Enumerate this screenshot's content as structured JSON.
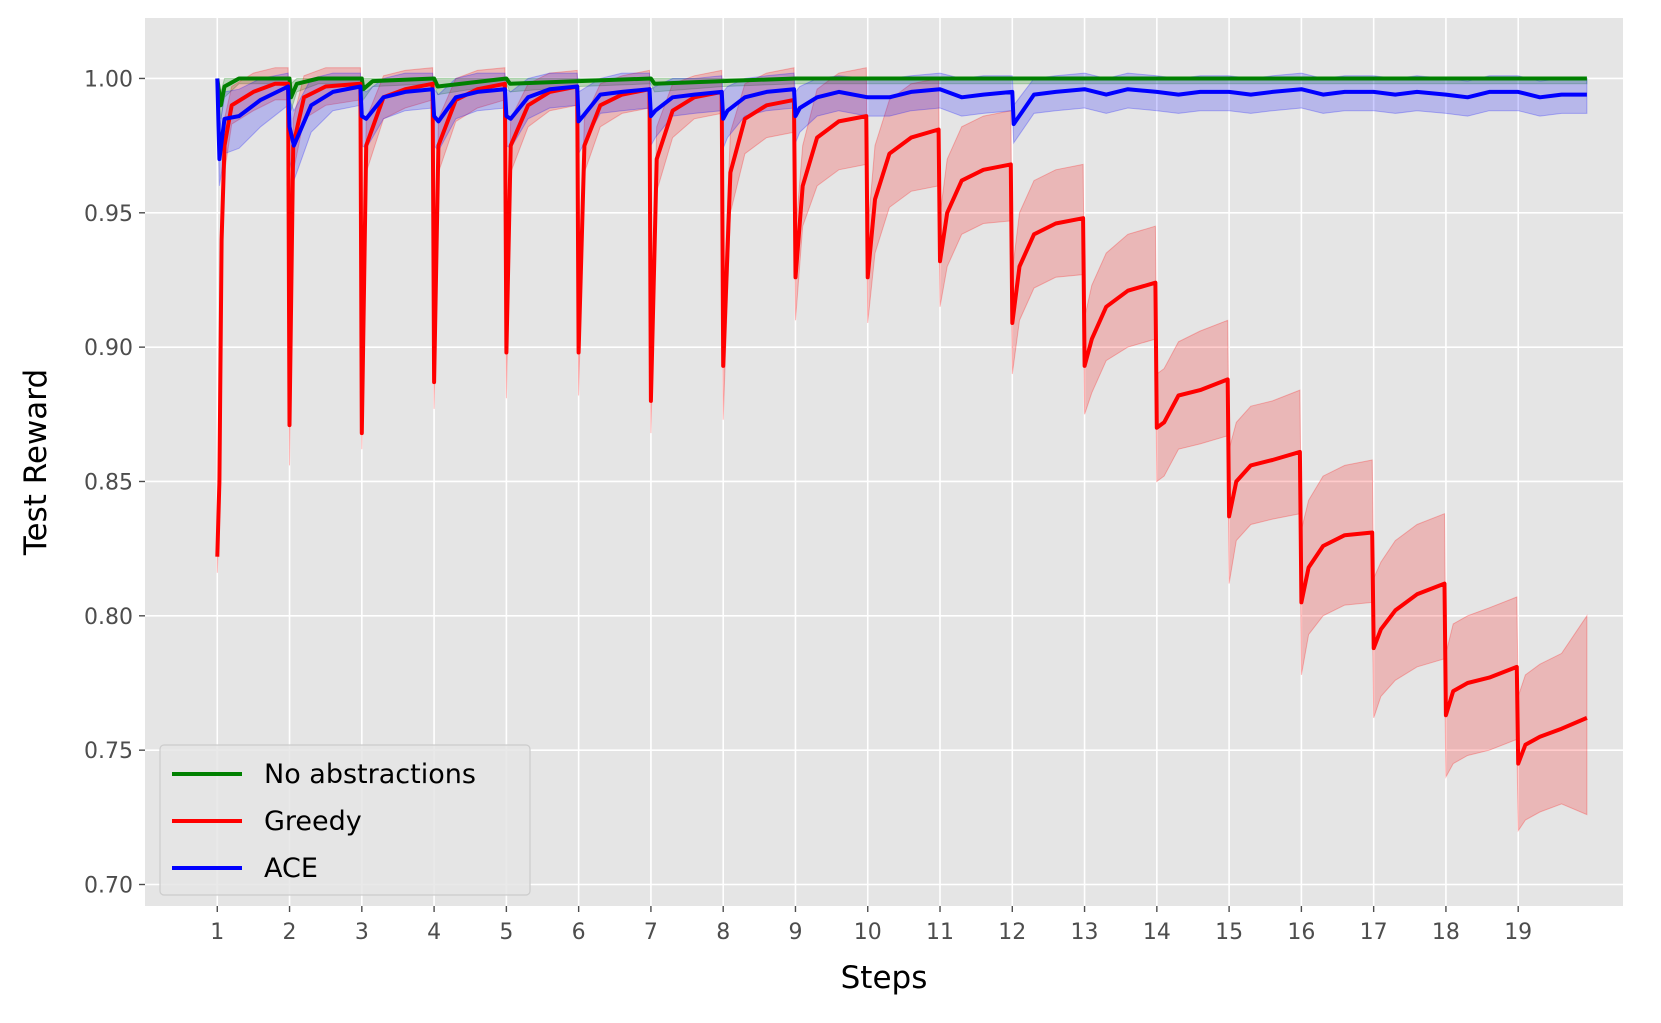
{
  "chart_data": {
    "type": "line",
    "xlabel": "Steps",
    "ylabel": "Test Reward",
    "xlim": [
      0.0,
      20.45
    ],
    "ylim": [
      0.692,
      1.0225
    ],
    "xticks": [
      1,
      2,
      3,
      4,
      5,
      6,
      7,
      8,
      9,
      10,
      11,
      12,
      13,
      14,
      15,
      16,
      17,
      18,
      19
    ],
    "yticks": [
      0.7,
      0.75,
      0.8,
      0.85,
      0.9,
      0.95,
      1.0
    ],
    "ytick_labels": [
      "0.70",
      "0.75",
      "0.80",
      "0.85",
      "0.90",
      "0.95",
      "1.00"
    ],
    "grid": true,
    "legend_position": "lower-left",
    "series": [
      {
        "name": "No abstractions",
        "color": "#008000",
        "x": [
          1,
          1.05,
          1.1,
          1.3,
          2,
          2.02,
          2.1,
          2.4,
          3,
          3.02,
          3.15,
          4,
          4.05,
          5,
          5.05,
          6,
          7,
          7.05,
          8,
          9,
          10,
          12,
          14,
          16,
          18,
          19,
          19.95
        ],
        "values": [
          1.0,
          0.99,
          0.997,
          1.0,
          1.0,
          0.993,
          0.998,
          1.0,
          1.0,
          0.996,
          0.999,
          1.0,
          0.997,
          1.0,
          0.998,
          0.999,
          1.0,
          0.998,
          0.999,
          1.0,
          1.0,
          1.0,
          1.0,
          1.0,
          1.0,
          1.0,
          1.0
        ],
        "band_lower": [
          1.0,
          0.985,
          0.993,
          0.998,
          0.998,
          0.988,
          0.995,
          0.998,
          0.998,
          0.992,
          0.997,
          0.998,
          0.994,
          0.998,
          0.995,
          0.997,
          0.998,
          0.995,
          0.997,
          0.998,
          0.998,
          0.998,
          0.998,
          0.998,
          0.998,
          0.998,
          0.998
        ],
        "band_upper": [
          1.0,
          0.995,
          1.0,
          1.0,
          1.0,
          0.998,
          1.0,
          1.0,
          1.0,
          1.0,
          1.0,
          1.0,
          1.0,
          1.0,
          1.0,
          1.0,
          1.0,
          1.0,
          1.0,
          1.0,
          1.0,
          1.0,
          1.0,
          1.0,
          1.0,
          1.0,
          1.0
        ]
      },
      {
        "name": "Greedy",
        "color": "#ff0000",
        "x": [
          1,
          1.03,
          1.06,
          1.1,
          1.2,
          1.5,
          1.8,
          1.98,
          2,
          2.05,
          2.2,
          2.5,
          2.98,
          3,
          3.06,
          3.3,
          3.6,
          3.98,
          4,
          4.06,
          4.3,
          4.6,
          4.98,
          5,
          5.06,
          5.3,
          5.6,
          5.98,
          6,
          6.08,
          6.3,
          6.6,
          6.98,
          7,
          7.08,
          7.3,
          7.6,
          7.98,
          8,
          8.1,
          8.3,
          8.6,
          8.98,
          9,
          9.1,
          9.3,
          9.6,
          9.98,
          10,
          10.1,
          10.3,
          10.6,
          10.98,
          11,
          11.1,
          11.3,
          11.6,
          11.98,
          12,
          12.1,
          12.3,
          12.6,
          12.98,
          13,
          13.1,
          13.3,
          13.6,
          13.98,
          14,
          14.1,
          14.3,
          14.6,
          14.98,
          15,
          15.1,
          15.3,
          15.6,
          15.98,
          16,
          16.1,
          16.3,
          16.6,
          16.98,
          17,
          17.1,
          17.3,
          17.6,
          17.98,
          18,
          18.1,
          18.3,
          18.6,
          18.98,
          19,
          19.1,
          19.3,
          19.6,
          19.95
        ],
        "values": [
          0.822,
          0.85,
          0.94,
          0.975,
          0.99,
          0.995,
          0.998,
          0.998,
          0.871,
          0.975,
          0.993,
          0.997,
          0.998,
          0.868,
          0.975,
          0.993,
          0.996,
          0.998,
          0.887,
          0.975,
          0.992,
          0.996,
          0.998,
          0.898,
          0.975,
          0.99,
          0.995,
          0.997,
          0.898,
          0.975,
          0.99,
          0.994,
          0.996,
          0.88,
          0.97,
          0.988,
          0.993,
          0.995,
          0.893,
          0.965,
          0.985,
          0.99,
          0.992,
          0.926,
          0.96,
          0.978,
          0.984,
          0.986,
          0.926,
          0.955,
          0.972,
          0.978,
          0.981,
          0.932,
          0.95,
          0.962,
          0.966,
          0.968,
          0.909,
          0.93,
          0.942,
          0.946,
          0.948,
          0.893,
          0.903,
          0.915,
          0.921,
          0.924,
          0.87,
          0.872,
          0.882,
          0.884,
          0.888,
          0.837,
          0.85,
          0.856,
          0.858,
          0.861,
          0.805,
          0.818,
          0.826,
          0.83,
          0.831,
          0.788,
          0.795,
          0.802,
          0.808,
          0.812,
          0.763,
          0.772,
          0.775,
          0.777,
          0.781,
          0.745,
          0.752,
          0.755,
          0.758,
          0.762
        ],
        "band_lower": [
          0.816,
          0.84,
          0.93,
          0.965,
          0.983,
          0.988,
          0.992,
          0.992,
          0.856,
          0.965,
          0.985,
          0.99,
          0.992,
          0.862,
          0.965,
          0.985,
          0.989,
          0.992,
          0.877,
          0.965,
          0.984,
          0.989,
          0.992,
          0.881,
          0.965,
          0.982,
          0.988,
          0.99,
          0.882,
          0.965,
          0.982,
          0.987,
          0.989,
          0.868,
          0.958,
          0.978,
          0.985,
          0.987,
          0.873,
          0.95,
          0.972,
          0.978,
          0.98,
          0.91,
          0.945,
          0.96,
          0.966,
          0.968,
          0.909,
          0.935,
          0.952,
          0.958,
          0.96,
          0.915,
          0.93,
          0.942,
          0.946,
          0.947,
          0.89,
          0.91,
          0.922,
          0.926,
          0.927,
          0.875,
          0.883,
          0.895,
          0.9,
          0.903,
          0.85,
          0.852,
          0.862,
          0.864,
          0.867,
          0.812,
          0.828,
          0.834,
          0.836,
          0.838,
          0.778,
          0.793,
          0.8,
          0.804,
          0.805,
          0.762,
          0.77,
          0.776,
          0.781,
          0.784,
          0.74,
          0.745,
          0.748,
          0.75,
          0.754,
          0.72,
          0.724,
          0.727,
          0.73,
          0.726
        ],
        "band_upper": [
          0.828,
          0.86,
          0.95,
          0.985,
          0.997,
          1.002,
          1.004,
          1.004,
          0.886,
          0.985,
          1.001,
          1.004,
          1.004,
          0.874,
          0.985,
          1.001,
          1.003,
          1.004,
          0.897,
          0.985,
          1.0,
          1.003,
          1.004,
          0.915,
          0.985,
          0.998,
          1.002,
          1.003,
          0.914,
          0.985,
          0.998,
          1.001,
          1.003,
          0.892,
          0.982,
          0.998,
          1.001,
          1.003,
          0.913,
          0.98,
          0.998,
          1.002,
          1.004,
          0.942,
          0.975,
          0.996,
          1.002,
          1.004,
          0.943,
          0.975,
          0.992,
          0.998,
          1.0,
          0.949,
          0.97,
          0.982,
          0.986,
          0.988,
          0.928,
          0.95,
          0.962,
          0.966,
          0.968,
          0.911,
          0.923,
          0.935,
          0.942,
          0.945,
          0.89,
          0.892,
          0.902,
          0.906,
          0.91,
          0.862,
          0.872,
          0.878,
          0.88,
          0.884,
          0.832,
          0.843,
          0.852,
          0.856,
          0.858,
          0.814,
          0.82,
          0.828,
          0.834,
          0.838,
          0.786,
          0.797,
          0.8,
          0.803,
          0.807,
          0.77,
          0.778,
          0.782,
          0.786,
          0.8
        ]
      },
      {
        "name": "ACE",
        "color": "#0000ff",
        "x": [
          1,
          1.03,
          1.1,
          1.3,
          1.6,
          1.98,
          2,
          2.06,
          2.3,
          2.6,
          2.98,
          3,
          3.06,
          3.3,
          3.6,
          3.98,
          4,
          4.06,
          4.3,
          4.6,
          4.98,
          5,
          5.06,
          5.3,
          5.6,
          5.98,
          6,
          6.06,
          6.3,
          6.6,
          6.98,
          7,
          7.06,
          7.3,
          7.6,
          7.98,
          8,
          8.06,
          8.3,
          8.6,
          8.98,
          9,
          9.06,
          9.3,
          9.6,
          10,
          10.3,
          10.6,
          11,
          11.3,
          11.6,
          12,
          12.02,
          12.3,
          12.6,
          13,
          13.3,
          13.6,
          14,
          14.3,
          14.6,
          15,
          15.3,
          15.6,
          16,
          16.3,
          16.6,
          17,
          17.3,
          17.6,
          18,
          18.3,
          18.6,
          19,
          19.3,
          19.6,
          19.95
        ],
        "values": [
          1.0,
          0.97,
          0.985,
          0.986,
          0.992,
          0.997,
          0.982,
          0.975,
          0.99,
          0.995,
          0.997,
          0.986,
          0.985,
          0.993,
          0.995,
          0.996,
          0.986,
          0.984,
          0.993,
          0.995,
          0.996,
          0.986,
          0.985,
          0.993,
          0.996,
          0.997,
          0.984,
          0.986,
          0.994,
          0.995,
          0.996,
          0.986,
          0.988,
          0.993,
          0.994,
          0.995,
          0.985,
          0.988,
          0.993,
          0.995,
          0.996,
          0.986,
          0.989,
          0.993,
          0.995,
          0.993,
          0.993,
          0.995,
          0.996,
          0.993,
          0.994,
          0.995,
          0.983,
          0.994,
          0.995,
          0.996,
          0.994,
          0.996,
          0.995,
          0.994,
          0.995,
          0.995,
          0.994,
          0.995,
          0.996,
          0.994,
          0.995,
          0.995,
          0.994,
          0.995,
          0.994,
          0.993,
          0.995,
          0.995,
          0.993,
          0.994,
          0.994
        ],
        "band_lower": [
          0.995,
          0.96,
          0.972,
          0.974,
          0.982,
          0.99,
          0.97,
          0.962,
          0.98,
          0.988,
          0.99,
          0.975,
          0.974,
          0.985,
          0.988,
          0.989,
          0.975,
          0.973,
          0.985,
          0.988,
          0.989,
          0.975,
          0.974,
          0.985,
          0.989,
          0.99,
          0.972,
          0.975,
          0.987,
          0.988,
          0.989,
          0.975,
          0.978,
          0.986,
          0.987,
          0.988,
          0.974,
          0.978,
          0.986,
          0.988,
          0.989,
          0.976,
          0.98,
          0.986,
          0.988,
          0.986,
          0.986,
          0.988,
          0.989,
          0.986,
          0.987,
          0.988,
          0.976,
          0.987,
          0.988,
          0.989,
          0.987,
          0.989,
          0.988,
          0.987,
          0.988,
          0.988,
          0.987,
          0.988,
          0.989,
          0.987,
          0.988,
          0.988,
          0.987,
          0.988,
          0.987,
          0.986,
          0.988,
          0.988,
          0.986,
          0.987,
          0.987
        ],
        "band_upper": [
          1.0,
          0.98,
          0.995,
          0.996,
          1.0,
          1.002,
          0.992,
          0.988,
          1.0,
          1.002,
          1.002,
          0.996,
          0.995,
          1.0,
          1.002,
          1.002,
          0.996,
          0.994,
          1.0,
          1.002,
          1.002,
          0.996,
          0.995,
          1.0,
          1.002,
          1.002,
          0.995,
          0.996,
          1.0,
          1.002,
          1.002,
          0.996,
          0.997,
          1.0,
          1.0,
          1.001,
          0.995,
          0.997,
          1.0,
          1.001,
          1.002,
          0.995,
          0.997,
          1.0,
          1.001,
          1.0,
          1.0,
          1.001,
          1.002,
          1.0,
          1.001,
          1.001,
          0.99,
          1.0,
          1.001,
          1.002,
          1.0,
          1.002,
          1.001,
          1.0,
          1.001,
          1.001,
          1.0,
          1.001,
          1.002,
          1.0,
          1.001,
          1.001,
          1.0,
          1.001,
          1.0,
          0.999,
          1.001,
          1.001,
          0.999,
          1.0,
          1.0
        ]
      }
    ]
  }
}
